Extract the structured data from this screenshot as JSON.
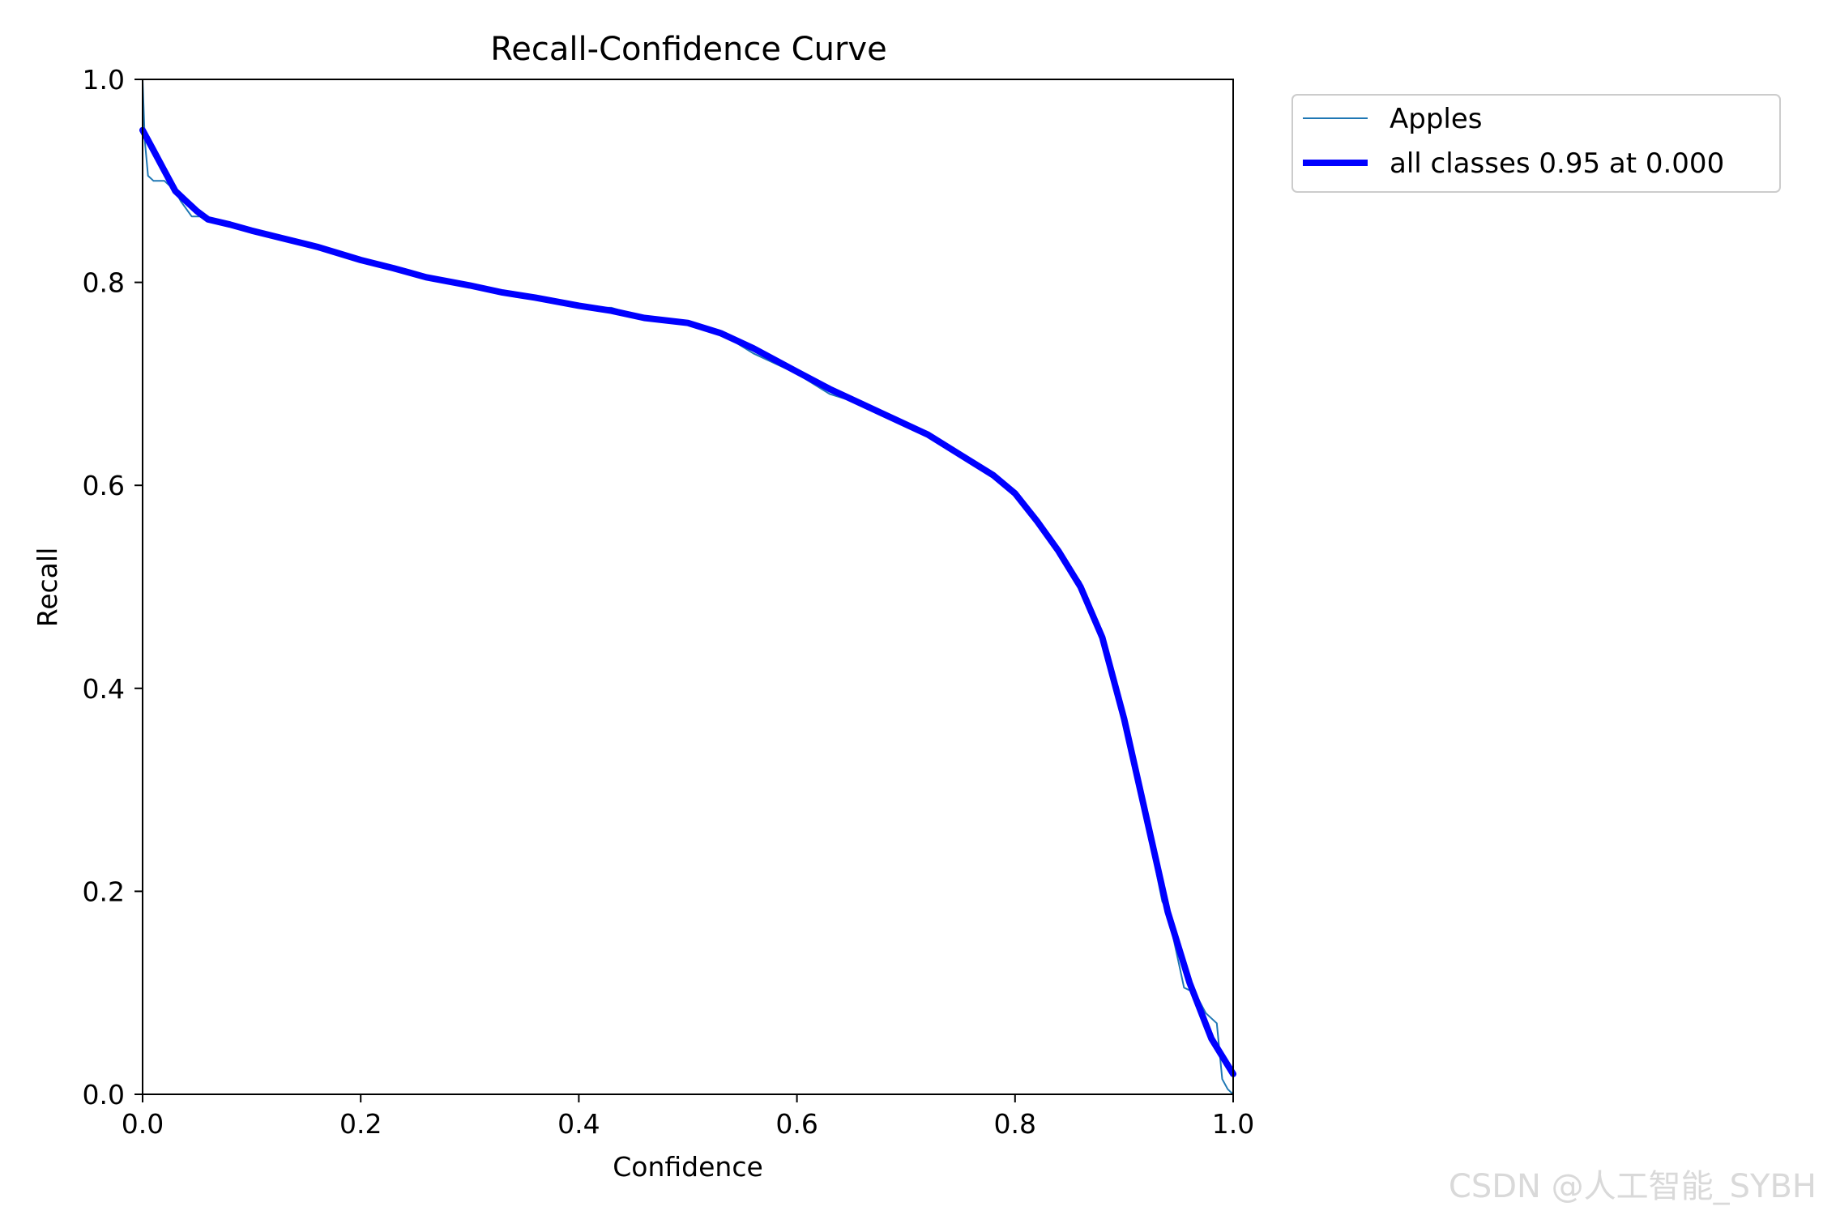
{
  "chart_data": {
    "type": "line",
    "title": "Recall-Confidence Curve",
    "xlabel": "Confidence",
    "ylabel": "Recall",
    "xlim": [
      0.0,
      1.0
    ],
    "ylim": [
      0.0,
      1.0
    ],
    "xticks": [
      "0.0",
      "0.2",
      "0.4",
      "0.6",
      "0.8",
      "1.0"
    ],
    "yticks": [
      "0.0",
      "0.2",
      "0.4",
      "0.6",
      "0.8",
      "1.0"
    ],
    "grid": false,
    "legend_position": "outside-top-right",
    "series": [
      {
        "name": "Apples",
        "color": "#1f77b4",
        "style": "thin",
        "x": [
          0.0,
          0.002,
          0.005,
          0.01,
          0.02,
          0.03,
          0.035,
          0.045,
          0.055,
          0.065,
          0.08,
          0.1,
          0.12,
          0.14,
          0.17,
          0.2,
          0.23,
          0.26,
          0.3,
          0.33,
          0.36,
          0.4,
          0.43,
          0.46,
          0.5,
          0.53,
          0.56,
          0.6,
          0.63,
          0.66,
          0.69,
          0.72,
          0.75,
          0.78,
          0.8,
          0.82,
          0.84,
          0.86,
          0.87,
          0.88,
          0.9,
          0.92,
          0.935,
          0.94,
          0.955,
          0.965,
          0.975,
          0.985,
          0.99,
          0.995,
          1.0
        ],
        "y": [
          1.0,
          0.94,
          0.905,
          0.9,
          0.9,
          0.89,
          0.88,
          0.865,
          0.865,
          0.86,
          0.855,
          0.85,
          0.845,
          0.84,
          0.83,
          0.82,
          0.815,
          0.805,
          0.795,
          0.79,
          0.785,
          0.775,
          0.775,
          0.765,
          0.76,
          0.75,
          0.73,
          0.71,
          0.69,
          0.68,
          0.665,
          0.65,
          0.63,
          0.61,
          0.595,
          0.565,
          0.535,
          0.505,
          0.48,
          0.445,
          0.37,
          0.27,
          0.19,
          0.18,
          0.105,
          0.1,
          0.08,
          0.07,
          0.015,
          0.005,
          0.0
        ]
      },
      {
        "name": "all classes 0.95 at 0.000",
        "color": "#0000ff",
        "style": "thick",
        "x": [
          0.0,
          0.01,
          0.02,
          0.03,
          0.04,
          0.05,
          0.06,
          0.08,
          0.1,
          0.13,
          0.16,
          0.2,
          0.23,
          0.26,
          0.3,
          0.33,
          0.36,
          0.4,
          0.43,
          0.46,
          0.5,
          0.53,
          0.56,
          0.6,
          0.63,
          0.66,
          0.69,
          0.72,
          0.75,
          0.78,
          0.8,
          0.82,
          0.84,
          0.86,
          0.88,
          0.9,
          0.92,
          0.94,
          0.96,
          0.98,
          1.0
        ],
        "y": [
          0.95,
          0.93,
          0.91,
          0.89,
          0.88,
          0.87,
          0.862,
          0.857,
          0.851,
          0.843,
          0.835,
          0.822,
          0.814,
          0.805,
          0.797,
          0.79,
          0.785,
          0.777,
          0.772,
          0.765,
          0.76,
          0.75,
          0.735,
          0.712,
          0.695,
          0.68,
          0.665,
          0.65,
          0.63,
          0.61,
          0.592,
          0.565,
          0.535,
          0.5,
          0.45,
          0.37,
          0.275,
          0.18,
          0.11,
          0.055,
          0.02
        ]
      }
    ]
  },
  "watermark": "CSDN @人工智能_SYBH"
}
